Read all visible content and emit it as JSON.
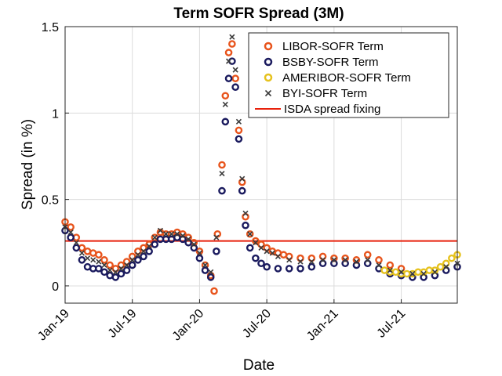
{
  "chart_data": {
    "type": "scatter",
    "title": "Term SOFR Spread (3M)",
    "xlabel": "Date",
    "ylabel": "Spread (in %)",
    "xlim": [
      0,
      35
    ],
    "ylim": [
      -0.1,
      1.5
    ],
    "x_unit": "months since Jan-19",
    "grid": true,
    "legend_position": "top-right",
    "x_ticks": [
      {
        "label": "Jan-19",
        "value": 0
      },
      {
        "label": "Jul-19",
        "value": 6
      },
      {
        "label": "Jan-20",
        "value": 12
      },
      {
        "label": "Jul-20",
        "value": 18
      },
      {
        "label": "Jan-21",
        "value": 24
      },
      {
        "label": "Jul-21",
        "value": 30
      }
    ],
    "y_ticks": [
      {
        "label": "0",
        "value": 0
      },
      {
        "label": "0.5",
        "value": 0.5
      },
      {
        "label": "1",
        "value": 1
      },
      {
        "label": "1.5",
        "value": 1.5
      }
    ],
    "series": [
      {
        "name": "LIBOR-SOFR Term",
        "marker": "circle",
        "color": "#E8541C",
        "points": [
          [
            0,
            0.37
          ],
          [
            0.5,
            0.34
          ],
          [
            1,
            0.28
          ],
          [
            1.5,
            0.22
          ],
          [
            2,
            0.2
          ],
          [
            2.5,
            0.19
          ],
          [
            3,
            0.18
          ],
          [
            3.5,
            0.15
          ],
          [
            4,
            0.12
          ],
          [
            4.5,
            0.1
          ],
          [
            5,
            0.12
          ],
          [
            5.5,
            0.14
          ],
          [
            6,
            0.17
          ],
          [
            6.5,
            0.2
          ],
          [
            7,
            0.22
          ],
          [
            7.5,
            0.24
          ],
          [
            8,
            0.28
          ],
          [
            8.5,
            0.31
          ],
          [
            9,
            0.3
          ],
          [
            9.5,
            0.3
          ],
          [
            10,
            0.31
          ],
          [
            10.5,
            0.3
          ],
          [
            11,
            0.28
          ],
          [
            11.5,
            0.25
          ],
          [
            12,
            0.2
          ],
          [
            12.5,
            0.12
          ],
          [
            13,
            0.06
          ],
          [
            13.3,
            -0.03
          ],
          [
            13.6,
            0.3
          ],
          [
            14,
            0.7
          ],
          [
            14.3,
            1.1
          ],
          [
            14.6,
            1.35
          ],
          [
            14.9,
            1.4
          ],
          [
            15.2,
            1.2
          ],
          [
            15.5,
            0.9
          ],
          [
            15.8,
            0.6
          ],
          [
            16.1,
            0.4
          ],
          [
            16.5,
            0.3
          ],
          [
            17,
            0.26
          ],
          [
            17.5,
            0.24
          ],
          [
            18,
            0.22
          ],
          [
            18.5,
            0.2
          ],
          [
            19,
            0.19
          ],
          [
            19.5,
            0.18
          ],
          [
            20,
            0.17
          ],
          [
            21,
            0.16
          ],
          [
            22,
            0.16
          ],
          [
            23,
            0.17
          ],
          [
            24,
            0.16
          ],
          [
            25,
            0.16
          ],
          [
            26,
            0.15
          ],
          [
            27,
            0.18
          ],
          [
            28,
            0.15
          ],
          [
            29,
            0.12
          ],
          [
            30,
            0.1
          ]
        ]
      },
      {
        "name": "BSBY-SOFR Term",
        "marker": "circle",
        "color": "#1A1A5E",
        "points": [
          [
            0,
            0.32
          ],
          [
            0.5,
            0.28
          ],
          [
            1,
            0.22
          ],
          [
            1.5,
            0.15
          ],
          [
            2,
            0.11
          ],
          [
            2.5,
            0.1
          ],
          [
            3,
            0.1
          ],
          [
            3.5,
            0.08
          ],
          [
            4,
            0.06
          ],
          [
            4.5,
            0.05
          ],
          [
            5,
            0.07
          ],
          [
            5.5,
            0.09
          ],
          [
            6,
            0.12
          ],
          [
            6.5,
            0.15
          ],
          [
            7,
            0.17
          ],
          [
            7.5,
            0.2
          ],
          [
            8,
            0.24
          ],
          [
            8.5,
            0.27
          ],
          [
            9,
            0.27
          ],
          [
            9.5,
            0.27
          ],
          [
            10,
            0.28
          ],
          [
            10.5,
            0.27
          ],
          [
            11,
            0.25
          ],
          [
            11.5,
            0.22
          ],
          [
            12,
            0.16
          ],
          [
            12.5,
            0.09
          ],
          [
            13,
            0.05
          ],
          [
            13.5,
            0.2
          ],
          [
            14,
            0.55
          ],
          [
            14.3,
            0.95
          ],
          [
            14.6,
            1.2
          ],
          [
            14.9,
            1.3
          ],
          [
            15.2,
            1.15
          ],
          [
            15.5,
            0.85
          ],
          [
            15.8,
            0.55
          ],
          [
            16.1,
            0.35
          ],
          [
            16.5,
            0.22
          ],
          [
            17,
            0.16
          ],
          [
            17.5,
            0.13
          ],
          [
            18,
            0.11
          ],
          [
            19,
            0.1
          ],
          [
            20,
            0.1
          ],
          [
            21,
            0.1
          ],
          [
            22,
            0.11
          ],
          [
            23,
            0.13
          ],
          [
            24,
            0.13
          ],
          [
            25,
            0.13
          ],
          [
            26,
            0.12
          ],
          [
            27,
            0.13
          ],
          [
            28,
            0.1
          ],
          [
            29,
            0.07
          ],
          [
            30,
            0.06
          ],
          [
            31,
            0.05
          ],
          [
            32,
            0.05
          ],
          [
            33,
            0.06
          ],
          [
            34,
            0.09
          ],
          [
            35,
            0.11
          ]
        ]
      },
      {
        "name": "AMERIBOR-SOFR Term",
        "marker": "circle",
        "color": "#E6C21E",
        "points": [
          [
            28.5,
            0.09
          ],
          [
            29,
            0.08
          ],
          [
            29.5,
            0.08
          ],
          [
            30,
            0.07
          ],
          [
            30.5,
            0.07
          ],
          [
            31,
            0.07
          ],
          [
            31.5,
            0.08
          ],
          [
            32,
            0.08
          ],
          [
            32.5,
            0.09
          ],
          [
            33,
            0.09
          ],
          [
            33.5,
            0.11
          ],
          [
            34,
            0.13
          ],
          [
            34.5,
            0.16
          ],
          [
            35,
            0.18
          ]
        ]
      },
      {
        "name": "BYI-SOFR Term",
        "marker": "cross",
        "color": "#3A3A3A",
        "points": [
          [
            0,
            0.34
          ],
          [
            0.5,
            0.31
          ],
          [
            1,
            0.25
          ],
          [
            1.5,
            0.19
          ],
          [
            2,
            0.16
          ],
          [
            2.5,
            0.15
          ],
          [
            3,
            0.14
          ],
          [
            3.5,
            0.12
          ],
          [
            4,
            0.09
          ],
          [
            4.5,
            0.08
          ],
          [
            5,
            0.1
          ],
          [
            5.5,
            0.12
          ],
          [
            6,
            0.15
          ],
          [
            6.5,
            0.18
          ],
          [
            7,
            0.2
          ],
          [
            7.5,
            0.23
          ],
          [
            8,
            0.28
          ],
          [
            8.5,
            0.32
          ],
          [
            9,
            0.3
          ],
          [
            9.5,
            0.3
          ],
          [
            10,
            0.3
          ],
          [
            10.5,
            0.29
          ],
          [
            11,
            0.27
          ],
          [
            11.5,
            0.24
          ],
          [
            12,
            0.19
          ],
          [
            12.5,
            0.12
          ],
          [
            13,
            0.08
          ],
          [
            13.5,
            0.28
          ],
          [
            14,
            0.65
          ],
          [
            14.3,
            1.05
          ],
          [
            14.6,
            1.3
          ],
          [
            14.9,
            1.44
          ],
          [
            15.2,
            1.25
          ],
          [
            15.5,
            0.95
          ],
          [
            15.8,
            0.62
          ],
          [
            16.1,
            0.42
          ],
          [
            16.5,
            0.3
          ],
          [
            17,
            0.25
          ],
          [
            17.5,
            0.22
          ],
          [
            18,
            0.2
          ],
          [
            18.5,
            0.19
          ],
          [
            19,
            0.17
          ],
          [
            20,
            0.15
          ],
          [
            21,
            0.14
          ],
          [
            22,
            0.14
          ],
          [
            23,
            0.15
          ],
          [
            24,
            0.15
          ],
          [
            25,
            0.15
          ],
          [
            26,
            0.14
          ],
          [
            27,
            0.15
          ],
          [
            28,
            0.12
          ],
          [
            29,
            0.09
          ],
          [
            30,
            0.08
          ],
          [
            31,
            0.07
          ],
          [
            32,
            0.07
          ],
          [
            33,
            0.08
          ],
          [
            34,
            0.11
          ],
          [
            35,
            0.13
          ]
        ]
      }
    ],
    "reference_line": {
      "name": "ISDA spread fixing",
      "value": 0.26,
      "color": "#E8210C"
    }
  }
}
